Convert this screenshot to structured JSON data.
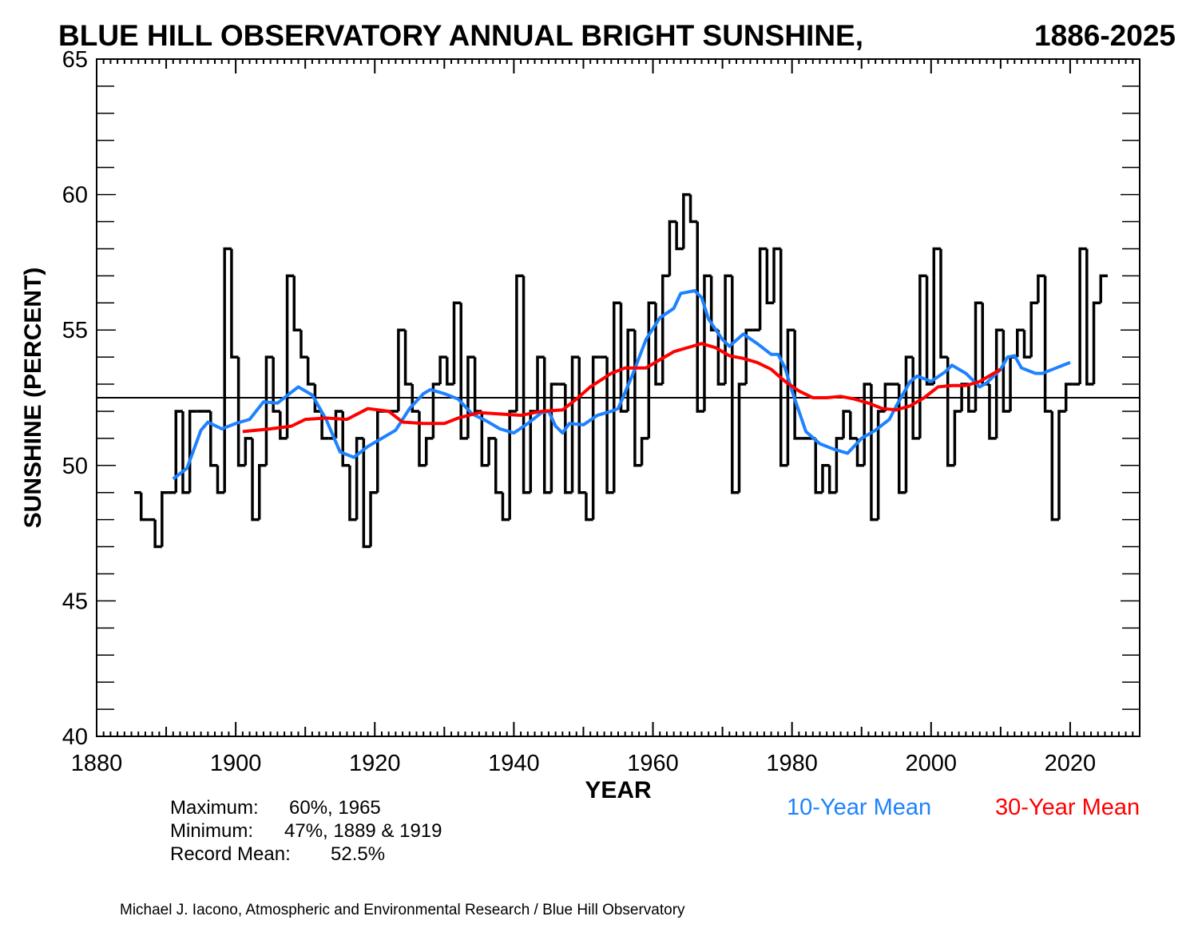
{
  "chart_data": {
    "type": "line",
    "title": "BLUE HILL OBSERVATORY ANNUAL BRIGHT SUNSHINE,",
    "period": "1886-2025",
    "xlabel": "YEAR",
    "ylabel": "SUNSHINE (PERCENT)",
    "xlim": [
      1880,
      2030
    ],
    "ylim": [
      40,
      65
    ],
    "xticks": [
      "1880",
      "1900",
      "1920",
      "1940",
      "1960",
      "1980",
      "2000",
      "2020"
    ],
    "yticks": [
      "40",
      "45",
      "50",
      "55",
      "60",
      "65"
    ],
    "grid": false,
    "record_mean": 52.5,
    "annual": {
      "style": "step",
      "color": "#000000",
      "x": [
        1886,
        1887,
        1888,
        1889,
        1890,
        1891,
        1892,
        1893,
        1894,
        1895,
        1896,
        1897,
        1898,
        1899,
        1900,
        1901,
        1902,
        1903,
        1904,
        1905,
        1906,
        1907,
        1908,
        1909,
        1910,
        1911,
        1912,
        1913,
        1914,
        1915,
        1916,
        1917,
        1918,
        1919,
        1920,
        1921,
        1922,
        1923,
        1924,
        1925,
        1926,
        1927,
        1928,
        1929,
        1930,
        1931,
        1932,
        1933,
        1934,
        1935,
        1936,
        1937,
        1938,
        1939,
        1940,
        1941,
        1942,
        1943,
        1944,
        1945,
        1946,
        1947,
        1948,
        1949,
        1950,
        1951,
        1952,
        1953,
        1954,
        1955,
        1956,
        1957,
        1958,
        1959,
        1960,
        1961,
        1962,
        1963,
        1964,
        1965,
        1966,
        1967,
        1968,
        1969,
        1970,
        1971,
        1972,
        1973,
        1974,
        1975,
        1976,
        1977,
        1978,
        1979,
        1980,
        1981,
        1982,
        1983,
        1984,
        1985,
        1986,
        1987,
        1988,
        1989,
        1990,
        1991,
        1992,
        1993,
        1994,
        1995,
        1996,
        1997,
        1998,
        1999,
        2000,
        2001,
        2002,
        2003,
        2004,
        2005,
        2006,
        2007,
        2008,
        2009,
        2010,
        2011,
        2012,
        2013,
        2014,
        2015,
        2016,
        2017,
        2018,
        2019,
        2020,
        2021,
        2022,
        2023,
        2024,
        2025
      ],
      "y": [
        49,
        48,
        48,
        47,
        49,
        49,
        52,
        49,
        52,
        52,
        52,
        50,
        49,
        58,
        54,
        50,
        51,
        48,
        50,
        54,
        52,
        51,
        57,
        55,
        54,
        53,
        52,
        51,
        51,
        52,
        50,
        48,
        51,
        47,
        49,
        52,
        52,
        52,
        55,
        53,
        52,
        50,
        51,
        53,
        54,
        53,
        56,
        51,
        54,
        52,
        50,
        51,
        49,
        48,
        52,
        57,
        49,
        52,
        54,
        49,
        53,
        53,
        49,
        54,
        49,
        48,
        54,
        54,
        49,
        56,
        52,
        55,
        50,
        51,
        56,
        53,
        57,
        59,
        58,
        60,
        59,
        52,
        57,
        55,
        53,
        57,
        49,
        53,
        55,
        55,
        58,
        56,
        58,
        50,
        55,
        51,
        51,
        51,
        49,
        50,
        49,
        51,
        52,
        51,
        50,
        53,
        48,
        52,
        53,
        53,
        49,
        54,
        51,
        57,
        53,
        58,
        54,
        50,
        52,
        53,
        52,
        56,
        53,
        51,
        55,
        52,
        54,
        55,
        54,
        56,
        57,
        52,
        48,
        52,
        53,
        53,
        58,
        53,
        56,
        57
      ]
    },
    "series": [
      {
        "name": "10-Year Mean",
        "color": "#1e82ff",
        "x": [
          1891,
          1893,
          1895,
          1896,
          1898,
          1900,
          1902,
          1904,
          1906,
          1908,
          1909,
          1911,
          1913,
          1915,
          1917,
          1919,
          1921,
          1923,
          1925,
          1927,
          1928,
          1930,
          1932,
          1934,
          1936,
          1938,
          1940,
          1942,
          1944,
          1945,
          1946,
          1947,
          1948,
          1950,
          1952,
          1954,
          1955,
          1957,
          1959,
          1961,
          1963,
          1964,
          1966,
          1967,
          1968,
          1970,
          1971,
          1973,
          1975,
          1977,
          1978,
          1979,
          1980,
          1982,
          1984,
          1986,
          1988,
          1990,
          1992,
          1994,
          1995,
          1997,
          1998,
          2000,
          2002,
          2003,
          2005,
          2007,
          2008,
          2010,
          2011,
          2012,
          2013,
          2015,
          2016,
          2018,
          2019,
          2020
        ],
        "y": [
          49.5,
          49.9,
          51.3,
          51.6,
          51.35,
          51.55,
          51.7,
          52.35,
          52.3,
          52.7,
          52.9,
          52.6,
          51.7,
          50.5,
          50.3,
          50.7,
          51.0,
          51.3,
          52.1,
          52.65,
          52.8,
          52.65,
          52.45,
          51.9,
          51.65,
          51.35,
          51.2,
          51.55,
          51.95,
          52.0,
          51.45,
          51.2,
          51.55,
          51.5,
          51.85,
          52.0,
          52.1,
          53.3,
          54.65,
          55.45,
          55.8,
          56.35,
          56.45,
          56.2,
          55.4,
          54.65,
          54.4,
          54.85,
          54.5,
          54.1,
          54.1,
          53.6,
          52.75,
          51.25,
          50.8,
          50.6,
          50.45,
          51.0,
          51.3,
          51.7,
          52.2,
          53.1,
          53.3,
          53.1,
          53.45,
          53.7,
          53.4,
          52.9,
          53.05,
          53.55,
          54.0,
          54.05,
          53.6,
          53.4,
          53.4,
          53.6,
          53.7,
          53.8
        ]
      },
      {
        "name": "30-Year Mean",
        "color": "#ff0000",
        "x": [
          1901,
          1905,
          1908,
          1910,
          1913,
          1916,
          1919,
          1922,
          1924,
          1927,
          1930,
          1932,
          1935,
          1938,
          1941,
          1944,
          1947,
          1949,
          1951,
          1954,
          1956,
          1959,
          1961,
          1963,
          1965,
          1967,
          1969,
          1971,
          1973,
          1975,
          1977,
          1979,
          1981,
          1983,
          1985,
          1987,
          1989,
          1991,
          1993,
          1995,
          1997,
          1999,
          2001,
          2003,
          2005,
          2007,
          2009,
          2010
        ],
        "y": [
          51.25,
          51.35,
          51.45,
          51.7,
          51.75,
          51.7,
          52.1,
          52.0,
          51.6,
          51.55,
          51.55,
          51.75,
          51.95,
          51.9,
          51.85,
          52.0,
          52.05,
          52.45,
          52.9,
          53.4,
          53.6,
          53.6,
          53.9,
          54.2,
          54.35,
          54.5,
          54.35,
          54.05,
          53.95,
          53.8,
          53.55,
          53.1,
          52.75,
          52.5,
          52.5,
          52.55,
          52.45,
          52.3,
          52.1,
          52.05,
          52.2,
          52.5,
          52.9,
          52.95,
          52.95,
          53.1,
          53.4,
          53.55
        ]
      }
    ],
    "stats": [
      {
        "label": "Maximum:",
        "value": "60%, 1965"
      },
      {
        "label": "Minimum:",
        "value": "47%, 1889 & 1919"
      },
      {
        "label": "Record Mean:",
        "value": "52.5%"
      }
    ],
    "credit": "Michael J. Iacono, Atmospheric and Environmental Research / Blue Hill Observatory"
  }
}
